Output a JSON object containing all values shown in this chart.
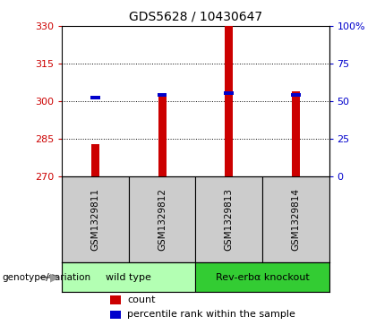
{
  "title": "GDS5628 / 10430647",
  "samples": [
    "GSM1329811",
    "GSM1329812",
    "GSM1329813",
    "GSM1329814"
  ],
  "groups": [
    {
      "name": "wild type",
      "color": "#b3ffb3",
      "samples": [
        0,
        1
      ]
    },
    {
      "name": "Rev-erbα knockout",
      "color": "#33cc33",
      "samples": [
        2,
        3
      ]
    }
  ],
  "counts": [
    283,
    303,
    330,
    304
  ],
  "percentile_ranks": [
    52,
    54,
    55,
    54
  ],
  "ylim_left": [
    270,
    330
  ],
  "ylim_right": [
    0,
    100
  ],
  "yticks_left": [
    270,
    285,
    300,
    315,
    330
  ],
  "yticks_right": [
    0,
    25,
    50,
    75,
    100
  ],
  "ytick_labels_right": [
    "0",
    "25",
    "50",
    "75",
    "100%"
  ],
  "bar_color_count": "#cc0000",
  "bar_color_percentile": "#0000cc",
  "bar_width": 0.12,
  "bg_color_sample": "#cccccc",
  "ylabel_left_color": "#cc0000",
  "ylabel_right_color": "#0000cc",
  "genotype_label": "genotype/variation",
  "legend_count": "count",
  "legend_percentile": "percentile rank within the sample",
  "title_fontsize": 10,
  "tick_fontsize": 8,
  "sample_fontsize": 7.5,
  "group_fontsize": 8,
  "legend_fontsize": 8
}
